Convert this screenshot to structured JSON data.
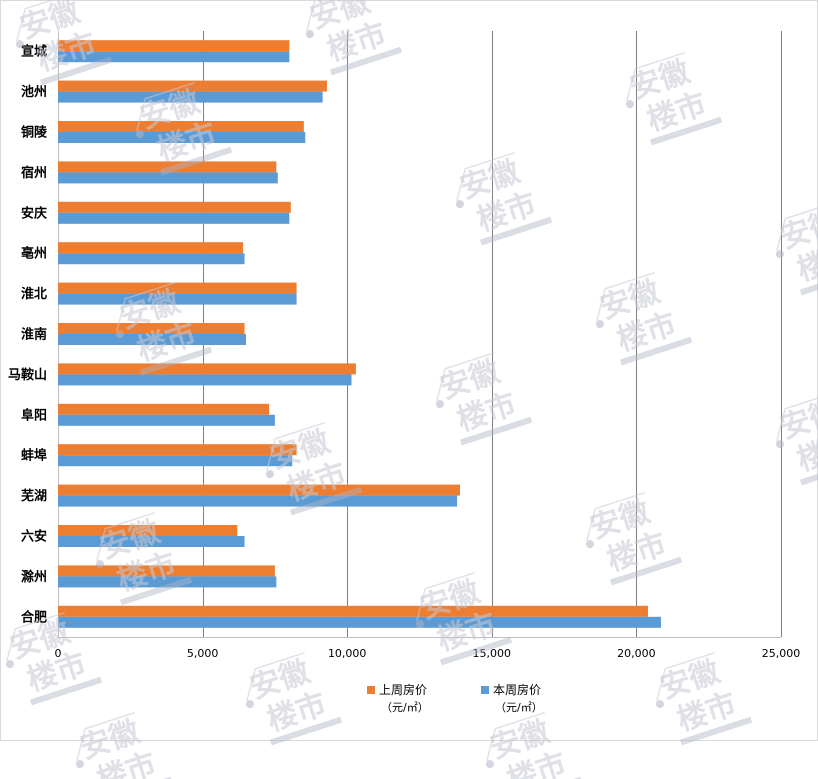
{
  "chart_data": {
    "type": "bar",
    "orientation": "horizontal",
    "categories": [
      "宣城",
      "池州",
      "铜陵",
      "宿州",
      "安庆",
      "亳州",
      "淮北",
      "淮南",
      "马鞍山",
      "阜阳",
      "蚌埠",
      "芜湖",
      "六安",
      "滁州",
      "合肥"
    ],
    "series": [
      {
        "name": "上周房价",
        "unit": "（元/㎡）",
        "color": "#ed7d31",
        "values": [
          8000,
          9300,
          8500,
          7550,
          8050,
          6400,
          8250,
          6450,
          10300,
          7300,
          8250,
          13900,
          6200,
          7500,
          20400
        ]
      },
      {
        "name": "本周房价",
        "unit": "（元/㎡）",
        "color": "#5b9bd5",
        "values": [
          8000,
          9150,
          8550,
          7600,
          8000,
          6450,
          8250,
          6500,
          10150,
          7500,
          8100,
          13800,
          6450,
          7550,
          20850
        ]
      }
    ],
    "xlim": [
      0,
      25000
    ],
    "xticks": [
      "0",
      "5,000",
      "10,000",
      "15,000",
      "20,000",
      "25,000"
    ],
    "grid": true,
    "legend_position": "bottom"
  },
  "watermark": {
    "line1": "安徽",
    "line2": "楼市"
  }
}
